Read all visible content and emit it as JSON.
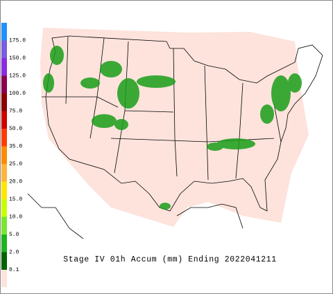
{
  "caption": "Stage IV 01h Accum (mm) Ending 2022041211",
  "legend": [
    {
      "label": "175.0",
      "color": "#1e90ff"
    },
    {
      "label": "150.0",
      "color": "#7a5ce0"
    },
    {
      "label": "125.0",
      "color": "#8a2be2"
    },
    {
      "label": "100.0",
      "color": "#8b0050"
    },
    {
      "label": "75.0",
      "color": "#8b0000"
    },
    {
      "label": "50.0",
      "color": "#d00000"
    },
    {
      "label": "35.0",
      "color": "#ff3c00"
    },
    {
      "label": "25.0",
      "color": "#ff8c00"
    },
    {
      "label": "20.0",
      "color": "#ffb43c"
    },
    {
      "label": "15.0",
      "color": "#ffe600"
    },
    {
      "label": "10.0",
      "color": "#c8ff00"
    },
    {
      "label": "5.0",
      "color": "#78e632"
    },
    {
      "label": "2.0",
      "color": "#1eb41e"
    },
    {
      "label": "0.1",
      "color": "#006400"
    }
  ],
  "bottom_color": "#fde3dc"
}
